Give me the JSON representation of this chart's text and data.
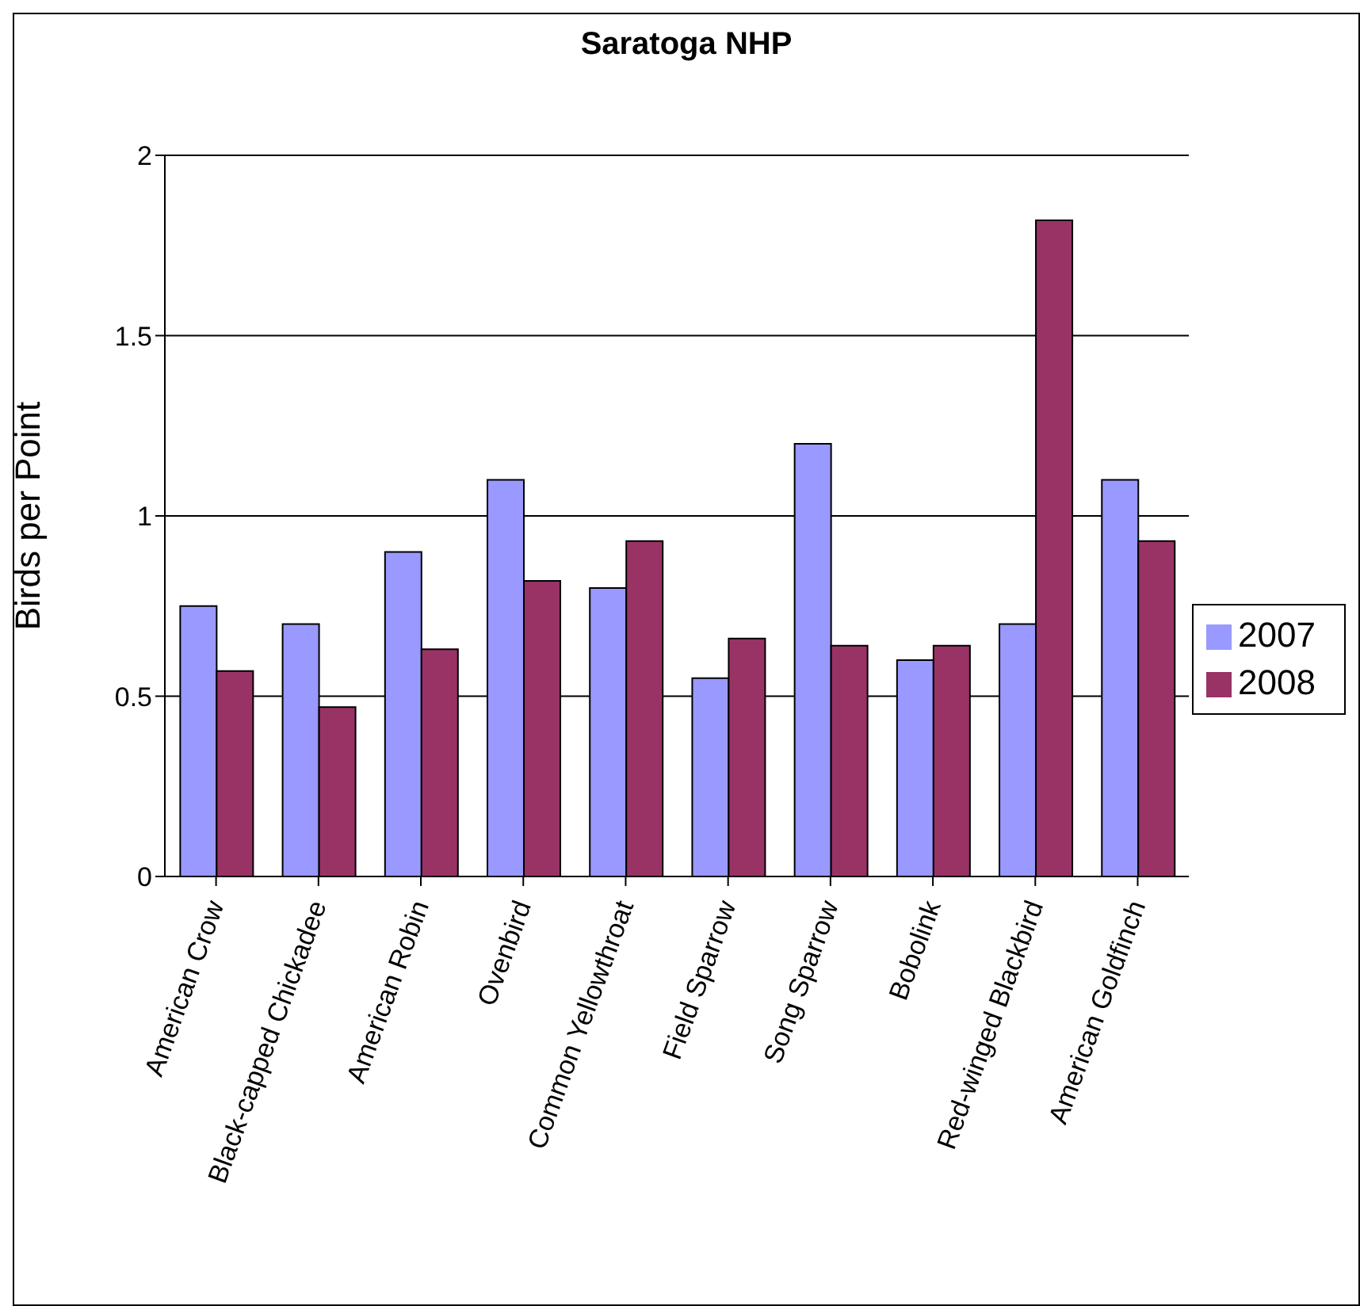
{
  "chart_data": {
    "type": "bar",
    "title": "Saratoga NHP",
    "ylabel": "Birds per Point",
    "categories": [
      "American Crow",
      "Black-capped Chickadee",
      "American Robin",
      "Ovenbird",
      "Common Yellowthroat",
      "Field Sparrow",
      "Song Sparrow",
      "Bobolink",
      "Red-winged Blackbird",
      "American Goldfinch"
    ],
    "series": [
      {
        "name": "2007",
        "color": "#9999ff",
        "values": [
          0.75,
          0.7,
          0.9,
          1.1,
          0.8,
          0.55,
          1.2,
          0.6,
          0.7,
          1.1
        ]
      },
      {
        "name": "2008",
        "color": "#993366",
        "values": [
          0.57,
          0.47,
          0.63,
          0.82,
          0.93,
          0.66,
          0.64,
          0.64,
          1.82,
          0.93
        ]
      }
    ],
    "ylim": [
      0,
      2
    ],
    "yticks": [
      0,
      0.5,
      1,
      1.5,
      2
    ],
    "grid": "y",
    "legend": "right"
  }
}
